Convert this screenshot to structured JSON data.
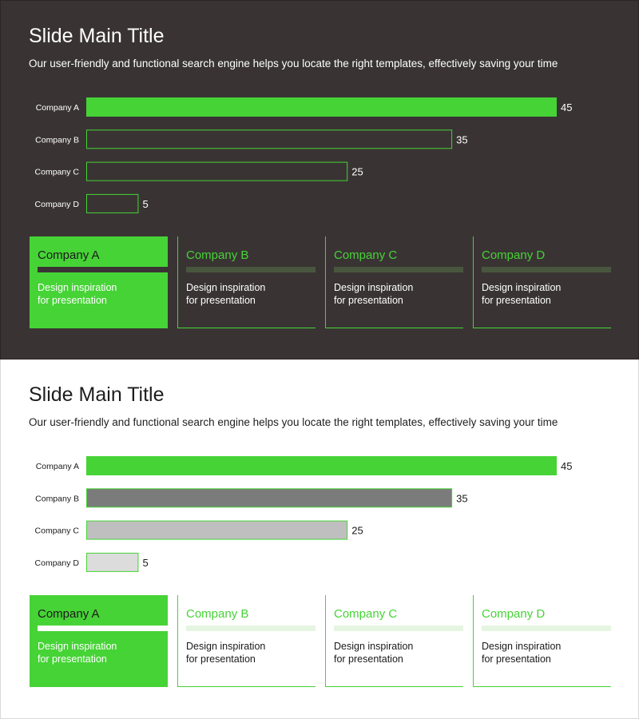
{
  "colors": {
    "accent": "#46d336",
    "dark_bg": "#393433",
    "dark_bar_fill": "#393433",
    "light_bar_fills": [
      "#46d336",
      "#7b7b7b",
      "#bfbfbf",
      "#dcdcdc"
    ]
  },
  "slides": [
    {
      "theme": "dark",
      "title": "Slide Main Title",
      "subtitle": "Our user-friendly and functional search engine helps you locate the right templates, effectively saving your time",
      "cards": [
        {
          "title": "Company A",
          "desc": "Design inspiration\nfor presentation",
          "active": true
        },
        {
          "title": "Company B",
          "desc": "Design inspiration\nfor presentation",
          "active": false
        },
        {
          "title": "Company C",
          "desc": "Design inspiration\nfor presentation",
          "active": false
        },
        {
          "title": "Company D",
          "desc": "Design inspiration\nfor presentation",
          "active": false
        }
      ]
    },
    {
      "theme": "light",
      "title": "Slide Main Title",
      "subtitle": "Our user-friendly and functional search engine helps you locate the right templates, effectively saving your time",
      "cards": [
        {
          "title": "Company A",
          "desc": "Design inspiration\nfor presentation",
          "active": true
        },
        {
          "title": "Company B",
          "desc": "Design inspiration\nfor presentation",
          "active": false
        },
        {
          "title": "Company C",
          "desc": "Design inspiration\nfor presentation",
          "active": false
        },
        {
          "title": "Company D",
          "desc": "Design inspiration\nfor presentation",
          "active": false
        }
      ]
    }
  ],
  "chart_data": [
    {
      "type": "bar",
      "orientation": "horizontal",
      "theme": "dark",
      "categories": [
        "Company A",
        "Company B",
        "Company C",
        "Company D"
      ],
      "values": [
        45,
        35,
        25,
        5
      ],
      "xlim": [
        0,
        45
      ],
      "grid": false,
      "data_labels": true
    },
    {
      "type": "bar",
      "orientation": "horizontal",
      "theme": "light",
      "categories": [
        "Company A",
        "Company B",
        "Company C",
        "Company D"
      ],
      "values": [
        45,
        35,
        25,
        5
      ],
      "xlim": [
        0,
        45
      ],
      "grid": false,
      "data_labels": true
    }
  ]
}
